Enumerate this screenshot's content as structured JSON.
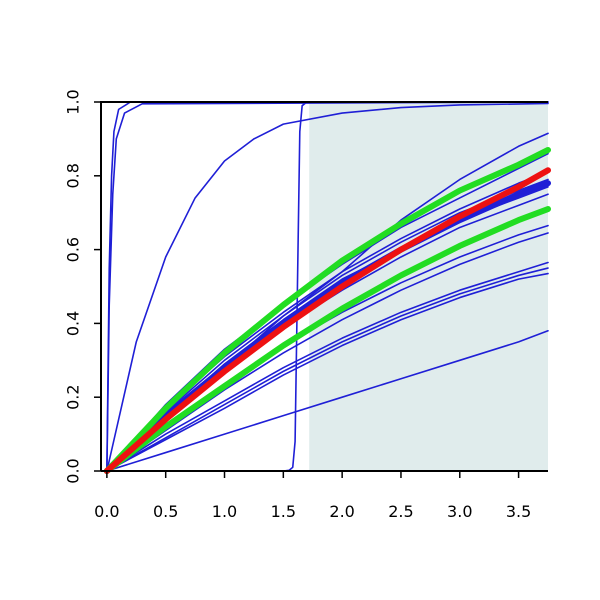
{
  "chart_data": {
    "type": "line",
    "title": "",
    "xlabel": "",
    "ylabel": "",
    "xlim": [
      -0.05,
      3.75
    ],
    "ylim": [
      0,
      1
    ],
    "x_ticks": [
      "0.0",
      "0.5",
      "1.0",
      "1.5",
      "2.0",
      "2.5",
      "3.0",
      "3.5"
    ],
    "y_ticks": [
      "0.0",
      "0.2",
      "0.4",
      "0.6",
      "0.8",
      "1.0"
    ],
    "grid": false,
    "legend": "none",
    "shaded_region": {
      "x_from": 1.72,
      "x_to": 3.75,
      "color": "#e0ecec"
    },
    "colors": {
      "blue": "#1f1fd6",
      "red": "#ee1111",
      "green": "#22dd22"
    },
    "series": [
      {
        "color": "blue",
        "width": "thin",
        "x": [
          0,
          0.02,
          0.04,
          0.06,
          0.1,
          0.2,
          3.75
        ],
        "y": [
          0,
          0.55,
          0.8,
          0.92,
          0.98,
          1.0,
          1.0
        ]
      },
      {
        "color": "blue",
        "width": "thin",
        "x": [
          0,
          0.02,
          0.05,
          0.08,
          0.15,
          0.3,
          3.75
        ],
        "y": [
          0,
          0.45,
          0.75,
          0.9,
          0.97,
          0.995,
          1.0
        ]
      },
      {
        "color": "blue",
        "width": "thin",
        "x": [
          0,
          0.25,
          0.5,
          0.75,
          1.0,
          1.25,
          1.5,
          2.0,
          2.5,
          3.0,
          3.75
        ],
        "y": [
          0,
          0.35,
          0.58,
          0.74,
          0.84,
          0.9,
          0.94,
          0.97,
          0.985,
          0.992,
          0.996
        ]
      },
      {
        "color": "blue",
        "width": "thin",
        "x": [
          0,
          0.5,
          1.0,
          1.5,
          2.0,
          2.5,
          3.0,
          3.5,
          3.75
        ],
        "y": [
          0,
          0.18,
          0.33,
          0.45,
          0.56,
          0.66,
          0.74,
          0.82,
          0.86
        ]
      },
      {
        "color": "blue",
        "width": "thin",
        "x": [
          0,
          0.5,
          1.0,
          1.5,
          2.0,
          2.5,
          3.0,
          3.5,
          3.75
        ],
        "y": [
          0,
          0.14,
          0.28,
          0.42,
          0.54,
          0.68,
          0.79,
          0.88,
          0.915
        ]
      },
      {
        "color": "blue",
        "width": "thin",
        "x": [
          0,
          0.5,
          1.0,
          1.5,
          2.0,
          2.5,
          3.0,
          3.5,
          3.75
        ],
        "y": [
          0,
          0.17,
          0.31,
          0.43,
          0.54,
          0.63,
          0.71,
          0.78,
          0.81
        ]
      },
      {
        "color": "blue",
        "width": "thin",
        "x": [
          0,
          0.5,
          1.0,
          1.5,
          2.0,
          2.5,
          3.0,
          3.5,
          3.75
        ],
        "y": [
          0,
          0.16,
          0.3,
          0.42,
          0.53,
          0.62,
          0.7,
          0.76,
          0.79
        ]
      },
      {
        "color": "blue",
        "width": "thin",
        "x": [
          0,
          0.5,
          1.0,
          1.5,
          2.0,
          2.5,
          3.0,
          3.5,
          3.75
        ],
        "y": [
          0,
          0.15,
          0.29,
          0.41,
          0.52,
          0.6,
          0.68,
          0.74,
          0.77
        ]
      },
      {
        "color": "blue",
        "width": "thin",
        "x": [
          0,
          0.5,
          1.0,
          1.5,
          2.0,
          2.5,
          3.0,
          3.5,
          3.75
        ],
        "y": [
          0,
          0.14,
          0.27,
          0.39,
          0.49,
          0.58,
          0.66,
          0.72,
          0.75
        ]
      },
      {
        "color": "blue",
        "width": "thin",
        "x": [
          0,
          0.5,
          1.0,
          1.5,
          2.0,
          2.5,
          3.0,
          3.5,
          3.75
        ],
        "y": [
          0,
          0.12,
          0.23,
          0.34,
          0.43,
          0.51,
          0.58,
          0.64,
          0.665
        ]
      },
      {
        "color": "blue",
        "width": "thin",
        "x": [
          0,
          0.5,
          1.0,
          1.5,
          2.0,
          2.5,
          3.0,
          3.5,
          3.75
        ],
        "y": [
          0,
          0.11,
          0.22,
          0.32,
          0.41,
          0.49,
          0.56,
          0.62,
          0.645
        ]
      },
      {
        "color": "blue",
        "width": "thin",
        "x": [
          0,
          0.5,
          1.0,
          1.5,
          2.0,
          2.5,
          3.0,
          3.5,
          3.75
        ],
        "y": [
          0,
          0.1,
          0.19,
          0.28,
          0.36,
          0.43,
          0.49,
          0.54,
          0.565
        ]
      },
      {
        "color": "blue",
        "width": "thin",
        "x": [
          0,
          0.5,
          1.0,
          1.5,
          2.0,
          2.5,
          3.0,
          3.5,
          3.75
        ],
        "y": [
          0,
          0.09,
          0.18,
          0.27,
          0.35,
          0.42,
          0.48,
          0.53,
          0.55
        ]
      },
      {
        "color": "blue",
        "width": "thin",
        "x": [
          0,
          0.5,
          1.0,
          1.5,
          2.0,
          2.5,
          3.0,
          3.5,
          3.75
        ],
        "y": [
          0,
          0.085,
          0.17,
          0.26,
          0.34,
          0.41,
          0.47,
          0.52,
          0.535
        ]
      },
      {
        "color": "blue",
        "width": "thin",
        "x": [
          0,
          0.5,
          1.0,
          1.5,
          2.0,
          2.5,
          3.0,
          3.5,
          3.75
        ],
        "y": [
          0,
          0.05,
          0.1,
          0.15,
          0.2,
          0.25,
          0.3,
          0.35,
          0.38
        ]
      },
      {
        "color": "blue",
        "width": "thin",
        "x": [
          0,
          1.5,
          1.55,
          1.58,
          1.6,
          1.62,
          1.64,
          1.66,
          1.7,
          3.75
        ],
        "y": [
          0,
          0,
          0.002,
          0.01,
          0.08,
          0.5,
          0.92,
          0.99,
          1.0,
          1.0
        ]
      },
      {
        "color": "blue",
        "width": "thick",
        "x": [
          0,
          0.5,
          1.0,
          1.5,
          2.0,
          2.5,
          3.0,
          3.5,
          3.75
        ],
        "y": [
          0,
          0.15,
          0.28,
          0.4,
          0.51,
          0.6,
          0.68,
          0.75,
          0.78
        ]
      },
      {
        "color": "green",
        "width": "thick",
        "x": [
          0,
          0.5,
          1.0,
          1.5,
          2.0,
          2.5,
          3.0,
          3.5,
          3.75
        ],
        "y": [
          0,
          0.17,
          0.32,
          0.45,
          0.57,
          0.67,
          0.76,
          0.83,
          0.87
        ]
      },
      {
        "color": "green",
        "width": "thick",
        "x": [
          0,
          0.5,
          1.0,
          1.5,
          2.0,
          2.5,
          3.0,
          3.5,
          3.75
        ],
        "y": [
          0,
          0.12,
          0.23,
          0.34,
          0.44,
          0.53,
          0.61,
          0.68,
          0.71
        ]
      },
      {
        "color": "red",
        "width": "thick",
        "x": [
          0,
          0.5,
          1.0,
          1.5,
          2.0,
          2.5,
          3.0,
          3.5,
          3.75
        ],
        "y": [
          0,
          0.14,
          0.27,
          0.39,
          0.5,
          0.6,
          0.69,
          0.77,
          0.815
        ]
      }
    ]
  }
}
